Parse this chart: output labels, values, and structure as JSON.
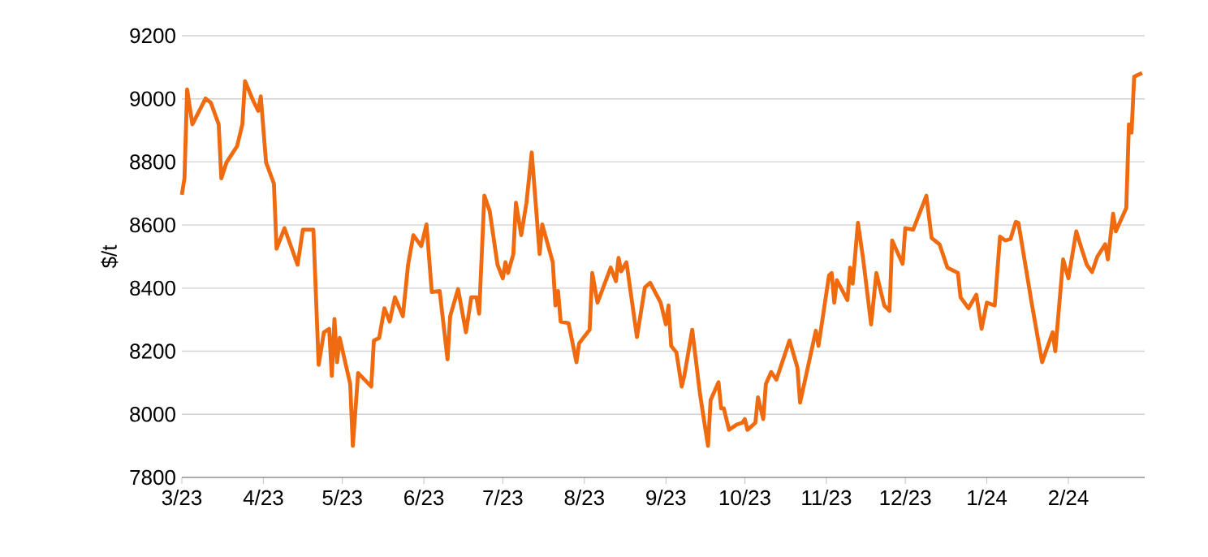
{
  "chart_data": {
    "type": "line",
    "ylabel": "$/t",
    "xlim": [
      "2023-03-01",
      "2024-03-01"
    ],
    "ylim": [
      7800,
      9200
    ],
    "yticks": [
      7800,
      8000,
      8200,
      8400,
      8600,
      8800,
      9000,
      9200
    ],
    "xticks": [
      {
        "value": "2023-03-01",
        "label": "3/23"
      },
      {
        "value": "2023-04-01",
        "label": "4/23"
      },
      {
        "value": "2023-05-01",
        "label": "5/23"
      },
      {
        "value": "2023-06-01",
        "label": "6/23"
      },
      {
        "value": "2023-07-01",
        "label": "7/23"
      },
      {
        "value": "2023-08-01",
        "label": "8/23"
      },
      {
        "value": "2023-09-01",
        "label": "9/23"
      },
      {
        "value": "2023-10-01",
        "label": "10/23"
      },
      {
        "value": "2023-11-01",
        "label": "11/23"
      },
      {
        "value": "2023-12-01",
        "label": "12/23"
      },
      {
        "value": "2024-01-01",
        "label": "1/24"
      },
      {
        "value": "2024-02-01",
        "label": "2/24"
      }
    ],
    "grid": "y",
    "legend": false,
    "marker": "none",
    "line_style": "solid",
    "x": [
      "2023-03-01",
      "2023-03-02",
      "2023-03-03",
      "2023-03-05",
      "2023-03-10",
      "2023-03-12",
      "2023-03-15",
      "2023-03-16",
      "2023-03-18",
      "2023-03-22",
      "2023-03-24",
      "2023-03-25",
      "2023-03-28",
      "2023-03-30",
      "2023-03-31",
      "2023-04-02",
      "2023-04-05",
      "2023-04-06",
      "2023-04-09",
      "2023-04-14",
      "2023-04-16",
      "2023-04-20",
      "2023-04-22",
      "2023-04-24",
      "2023-04-26",
      "2023-04-27",
      "2023-04-28",
      "2023-04-29",
      "2023-04-30",
      "2023-05-04",
      "2023-05-05",
      "2023-05-07",
      "2023-05-12",
      "2023-05-13",
      "2023-05-15",
      "2023-05-17",
      "2023-05-19",
      "2023-05-21",
      "2023-05-24",
      "2023-05-26",
      "2023-05-28",
      "2023-05-31",
      "2023-06-02",
      "2023-06-04",
      "2023-06-07",
      "2023-06-10",
      "2023-06-11",
      "2023-06-14",
      "2023-06-17",
      "2023-06-19",
      "2023-06-21",
      "2023-06-22",
      "2023-06-24",
      "2023-06-26",
      "2023-06-29",
      "2023-07-01",
      "2023-07-02",
      "2023-07-03",
      "2023-07-05",
      "2023-07-06",
      "2023-07-08",
      "2023-07-10",
      "2023-07-12",
      "2023-07-15",
      "2023-07-16",
      "2023-07-20",
      "2023-07-21",
      "2023-07-22",
      "2023-07-23",
      "2023-07-26",
      "2023-07-29",
      "2023-07-30",
      "2023-08-03",
      "2023-08-04",
      "2023-08-06",
      "2023-08-11",
      "2023-08-13",
      "2023-08-14",
      "2023-08-15",
      "2023-08-17",
      "2023-08-21",
      "2023-08-24",
      "2023-08-26",
      "2023-08-30",
      "2023-09-01",
      "2023-09-02",
      "2023-09-03",
      "2023-09-05",
      "2023-09-07",
      "2023-09-08",
      "2023-09-11",
      "2023-09-14",
      "2023-09-17",
      "2023-09-18",
      "2023-09-21",
      "2023-09-22",
      "2023-09-23",
      "2023-09-25",
      "2023-09-28",
      "2023-09-30",
      "2023-10-01",
      "2023-10-02",
      "2023-10-05",
      "2023-10-06",
      "2023-10-08",
      "2023-10-09",
      "2023-10-11",
      "2023-10-13",
      "2023-10-18",
      "2023-10-21",
      "2023-10-22",
      "2023-10-28",
      "2023-10-29",
      "2023-11-02",
      "2023-11-03",
      "2023-11-04",
      "2023-11-05",
      "2023-11-09",
      "2023-11-10",
      "2023-11-11",
      "2023-11-13",
      "2023-11-15",
      "2023-11-18",
      "2023-11-20",
      "2023-11-23",
      "2023-11-25",
      "2023-11-26",
      "2023-11-30",
      "2023-12-01",
      "2023-12-04",
      "2023-12-09",
      "2023-12-11",
      "2023-12-14",
      "2023-12-17",
      "2023-12-21",
      "2023-12-22",
      "2023-12-25",
      "2023-12-28",
      "2023-12-30",
      "2024-01-01",
      "2024-01-04",
      "2024-01-06",
      "2024-01-08",
      "2024-01-10",
      "2024-01-12",
      "2024-01-13",
      "2024-01-17",
      "2024-01-18",
      "2024-01-22",
      "2024-01-26",
      "2024-01-27",
      "2024-01-30",
      "2024-02-01",
      "2024-02-04",
      "2024-02-06",
      "2024-02-08",
      "2024-02-10",
      "2024-02-12",
      "2024-02-15",
      "2024-02-16",
      "2024-02-18",
      "2024-02-19",
      "2024-02-23",
      "2024-02-24",
      "2024-02-25",
      "2024-02-26",
      "2024-02-29"
    ],
    "series": [
      {
        "color": "#f06a0f",
        "values": [
          8696,
          8748,
          9030,
          8919,
          9001,
          8988,
          8919,
          8748,
          8799,
          8850,
          8919,
          9056,
          8996,
          8962,
          9008,
          8799,
          8731,
          8525,
          8590,
          8474,
          8585,
          8585,
          8157,
          8260,
          8271,
          8122,
          8302,
          8165,
          8242,
          8096,
          7900,
          8131,
          8088,
          8234,
          8242,
          8336,
          8294,
          8371,
          8311,
          8474,
          8568,
          8533,
          8602,
          8388,
          8391,
          8174,
          8311,
          8397,
          8260,
          8371,
          8371,
          8319,
          8693,
          8645,
          8474,
          8431,
          8482,
          8448,
          8508,
          8671,
          8568,
          8671,
          8830,
          8508,
          8602,
          8482,
          8345,
          8391,
          8294,
          8289,
          8165,
          8225,
          8268,
          8448,
          8354,
          8465,
          8422,
          8496,
          8453,
          8482,
          8245,
          8402,
          8417,
          8354,
          8285,
          8345,
          8217,
          8196,
          8088,
          8122,
          8268,
          8062,
          7900,
          8045,
          8102,
          8019,
          8019,
          7951,
          7968,
          7973,
          7985,
          7951,
          7973,
          8054,
          7985,
          8096,
          8134,
          8110,
          8234,
          8148,
          8037,
          8265,
          8217,
          8440,
          8448,
          8354,
          8425,
          8362,
          8465,
          8414,
          8607,
          8491,
          8285,
          8448,
          8345,
          8328,
          8551,
          8477,
          8590,
          8585,
          8693,
          8559,
          8539,
          8465,
          8448,
          8371,
          8336,
          8379,
          8271,
          8354,
          8345,
          8563,
          8551,
          8556,
          8610,
          8607,
          8405,
          8354,
          8165,
          8260,
          8200,
          8491,
          8431,
          8580,
          8525,
          8474,
          8451,
          8500,
          8539,
          8491,
          8636,
          8580,
          8654,
          8919,
          8893,
          9070,
          9082
        ]
      }
    ]
  }
}
